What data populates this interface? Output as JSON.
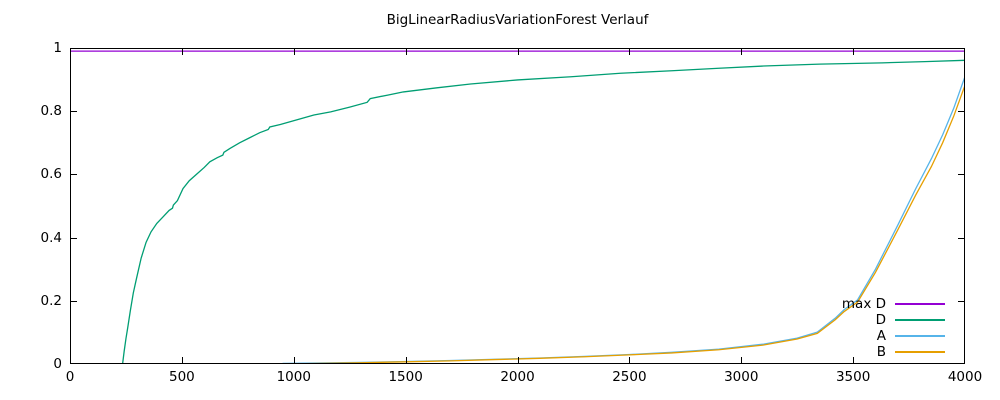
{
  "title": "BigLinearRadiusVariationForest Verlauf",
  "colors": {
    "background": "#ffffff",
    "border": "#000000",
    "text": "#000000",
    "max_d": "#9400d3",
    "d": "#009e73",
    "a": "#56b4e9",
    "b": "#e69f00"
  },
  "chart_data": {
    "type": "line",
    "title": "BigLinearRadiusVariationForest Verlauf",
    "xlabel": "",
    "ylabel": "",
    "xlim": [
      0,
      4000
    ],
    "ylim": [
      0,
      1
    ],
    "x_ticks": [
      0,
      500,
      1000,
      1500,
      2000,
      2500,
      3000,
      3500,
      4000
    ],
    "x_tick_labels": [
      "0",
      "500",
      "1000",
      "1500",
      "2000",
      "2500",
      "3000",
      "3500",
      "4000"
    ],
    "y_ticks": [
      0,
      0.2,
      0.4,
      0.6,
      0.8,
      1
    ],
    "y_tick_labels": [
      "0",
      "0.2",
      "0.4",
      "0.6",
      "0.8",
      "1"
    ],
    "grid": false,
    "legend_position": "inside-bottom-right",
    "series": [
      {
        "name": "max D",
        "color": "#9400d3",
        "points": [
          [
            0,
            0.99
          ],
          [
            4000,
            0.99
          ]
        ]
      },
      {
        "name": "D",
        "color": "#009e73",
        "points": [
          [
            235,
            0
          ],
          [
            242,
            0.04
          ],
          [
            250,
            0.08
          ],
          [
            258,
            0.115
          ],
          [
            270,
            0.17
          ],
          [
            283,
            0.225
          ],
          [
            297,
            0.27
          ],
          [
            318,
            0.335
          ],
          [
            340,
            0.385
          ],
          [
            362,
            0.418
          ],
          [
            388,
            0.445
          ],
          [
            415,
            0.465
          ],
          [
            443,
            0.486
          ],
          [
            458,
            0.493
          ],
          [
            462,
            0.503
          ],
          [
            480,
            0.517
          ],
          [
            505,
            0.555
          ],
          [
            533,
            0.58
          ],
          [
            565,
            0.6
          ],
          [
            600,
            0.622
          ],
          [
            625,
            0.64
          ],
          [
            658,
            0.653
          ],
          [
            683,
            0.661
          ],
          [
            688,
            0.67
          ],
          [
            715,
            0.682
          ],
          [
            758,
            0.7
          ],
          [
            803,
            0.716
          ],
          [
            848,
            0.732
          ],
          [
            886,
            0.742
          ],
          [
            893,
            0.75
          ],
          [
            940,
            0.758
          ],
          [
            1015,
            0.773
          ],
          [
            1090,
            0.788
          ],
          [
            1165,
            0.798
          ],
          [
            1250,
            0.813
          ],
          [
            1328,
            0.828
          ],
          [
            1342,
            0.84
          ],
          [
            1420,
            0.851
          ],
          [
            1490,
            0.861
          ],
          [
            1640,
            0.874
          ],
          [
            1790,
            0.886
          ],
          [
            2000,
            0.899
          ],
          [
            2240,
            0.909
          ],
          [
            2460,
            0.92
          ],
          [
            2690,
            0.928
          ],
          [
            2900,
            0.936
          ],
          [
            3100,
            0.943
          ],
          [
            3350,
            0.949
          ],
          [
            3630,
            0.953
          ],
          [
            3820,
            0.957
          ],
          [
            4000,
            0.961
          ]
        ]
      },
      {
        "name": "A",
        "color": "#56b4e9",
        "points": [
          [
            950,
            0.002
          ],
          [
            1100,
            0.003
          ],
          [
            1300,
            0.005
          ],
          [
            1500,
            0.008
          ],
          [
            1700,
            0.011
          ],
          [
            1900,
            0.015
          ],
          [
            2100,
            0.019
          ],
          [
            2300,
            0.024
          ],
          [
            2500,
            0.03
          ],
          [
            2690,
            0.037
          ],
          [
            2900,
            0.047
          ],
          [
            3100,
            0.063
          ],
          [
            3250,
            0.082
          ],
          [
            3340,
            0.101
          ],
          [
            3420,
            0.145
          ],
          [
            3460,
            0.172
          ],
          [
            3520,
            0.203
          ],
          [
            3600,
            0.3
          ],
          [
            3700,
            0.44
          ],
          [
            3780,
            0.555
          ],
          [
            3850,
            0.65
          ],
          [
            3900,
            0.725
          ],
          [
            3950,
            0.81
          ],
          [
            4000,
            0.91
          ]
        ]
      },
      {
        "name": "B",
        "color": "#e69f00",
        "points": [
          [
            1050,
            0.001
          ],
          [
            1300,
            0.004
          ],
          [
            1500,
            0.007
          ],
          [
            1700,
            0.01
          ],
          [
            1900,
            0.014
          ],
          [
            2100,
            0.018
          ],
          [
            2300,
            0.023
          ],
          [
            2500,
            0.029
          ],
          [
            2690,
            0.035
          ],
          [
            2900,
            0.045
          ],
          [
            3100,
            0.06
          ],
          [
            3250,
            0.079
          ],
          [
            3340,
            0.097
          ],
          [
            3420,
            0.14
          ],
          [
            3460,
            0.166
          ],
          [
            3520,
            0.196
          ],
          [
            3600,
            0.29
          ],
          [
            3700,
            0.425
          ],
          [
            3780,
            0.535
          ],
          [
            3850,
            0.625
          ],
          [
            3900,
            0.7
          ],
          [
            3950,
            0.785
          ],
          [
            4000,
            0.882
          ]
        ]
      }
    ]
  }
}
